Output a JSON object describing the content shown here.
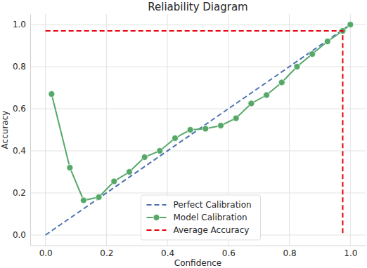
{
  "chart_data": {
    "type": "line",
    "title": "Reliability Diagram",
    "x_label": "Confidence",
    "y_label": "Accuracy",
    "xlim": [
      -0.05,
      1.05
    ],
    "ylim": [
      -0.05,
      1.05
    ],
    "xticks": [
      {
        "value": 0,
        "label": "0.0"
      },
      {
        "value": 0.2,
        "label": "0.2"
      },
      {
        "value": 0.4,
        "label": "0.4"
      },
      {
        "value": 0.6,
        "label": "0.6"
      },
      {
        "value": 0.8,
        "label": "0.8"
      },
      {
        "value": 1,
        "label": "1.0"
      }
    ],
    "yticks": [
      {
        "value": 0,
        "label": "0.0"
      },
      {
        "value": 0.2,
        "label": "0.2"
      },
      {
        "value": 0.4,
        "label": "0.4"
      },
      {
        "value": 0.6,
        "label": "0.6"
      },
      {
        "value": 0.8,
        "label": "0.8"
      },
      {
        "value": 1,
        "label": "1.0"
      }
    ],
    "grid": true,
    "legend": "lower center",
    "series": [
      {
        "name": "Perfect Calibration",
        "color": "#4c72b0",
        "line_style": "dashed",
        "marker": "none",
        "x": [
          0,
          1
        ],
        "values": [
          0,
          1
        ]
      },
      {
        "name": "Model Calibration",
        "color": "#55a868",
        "line_style": "solid",
        "marker": "circle",
        "x": [
          0.02,
          0.08,
          0.125,
          0.175,
          0.225,
          0.275,
          0.325,
          0.375,
          0.425,
          0.475,
          0.525,
          0.575,
          0.625,
          0.675,
          0.725,
          0.775,
          0.825,
          0.875,
          0.925,
          0.975,
          1.0
        ],
        "values": [
          0.67,
          0.32,
          0.165,
          0.18,
          0.255,
          0.3,
          0.37,
          0.4,
          0.46,
          0.5,
          0.505,
          0.52,
          0.555,
          0.625,
          0.665,
          0.725,
          0.8,
          0.86,
          0.92,
          0.97,
          1.0
        ]
      },
      {
        "name": "Average Accuracy",
        "color": "#e8000b",
        "line_style": "dashed",
        "marker": "none",
        "x": [
          0,
          0.975,
          0.975
        ],
        "values": [
          0.97,
          0.97,
          0
        ]
      }
    ]
  }
}
